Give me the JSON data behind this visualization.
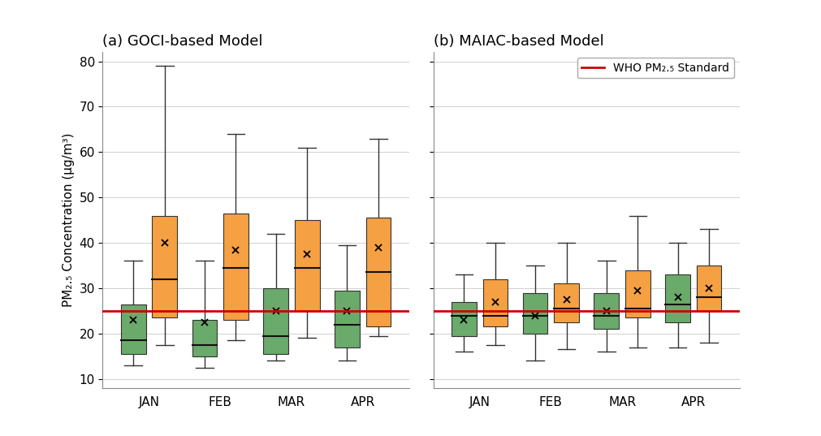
{
  "who_standard": 25,
  "ylim": [
    8,
    82
  ],
  "yticks": [
    10,
    20,
    30,
    40,
    50,
    60,
    70,
    80
  ],
  "months": [
    "JAN",
    "FEB",
    "MAR",
    "APR"
  ],
  "green_color": "#6aaa6a",
  "orange_color": "#f5a042",
  "red_color": "#cc0000",
  "panel_a_title": "(a) GOCI-based Model",
  "panel_b_title": "(b) MAIAC-based Model",
  "ylabel": "PM₂.₅ Concentration (μg/m³)",
  "legend_label": "WHO PM₂.₅ Standard",
  "goci_green": {
    "JAN": {
      "whislo": 13.0,
      "q1": 15.5,
      "med": 18.5,
      "q3": 26.5,
      "whishi": 36.0,
      "mean": 23.0
    },
    "FEB": {
      "whislo": 12.5,
      "q1": 15.0,
      "med": 17.5,
      "q3": 23.0,
      "whishi": 36.0,
      "mean": 22.5
    },
    "MAR": {
      "whislo": 14.0,
      "q1": 15.5,
      "med": 19.5,
      "q3": 30.0,
      "whishi": 42.0,
      "mean": 25.0
    },
    "APR": {
      "whislo": 14.0,
      "q1": 17.0,
      "med": 22.0,
      "q3": 29.5,
      "whishi": 39.5,
      "mean": 25.0
    }
  },
  "goci_orange": {
    "JAN": {
      "whislo": 17.5,
      "q1": 23.5,
      "med": 32.0,
      "q3": 46.0,
      "whishi": 79.0,
      "mean": 40.0
    },
    "FEB": {
      "whislo": 18.5,
      "q1": 23.0,
      "med": 34.5,
      "q3": 46.5,
      "whishi": 64.0,
      "mean": 38.5
    },
    "MAR": {
      "whislo": 19.0,
      "q1": 25.0,
      "med": 34.5,
      "q3": 45.0,
      "whishi": 61.0,
      "mean": 37.5
    },
    "APR": {
      "whislo": 19.5,
      "q1": 21.5,
      "med": 33.5,
      "q3": 45.5,
      "whishi": 63.0,
      "mean": 39.0
    }
  },
  "maiac_green": {
    "JAN": {
      "whislo": 16.0,
      "q1": 19.5,
      "med": 24.0,
      "q3": 27.0,
      "whishi": 33.0,
      "mean": 23.0
    },
    "FEB": {
      "whislo": 14.0,
      "q1": 20.0,
      "med": 24.0,
      "q3": 29.0,
      "whishi": 35.0,
      "mean": 24.0
    },
    "MAR": {
      "whislo": 16.0,
      "q1": 21.0,
      "med": 24.0,
      "q3": 29.0,
      "whishi": 36.0,
      "mean": 25.0
    },
    "APR": {
      "whislo": 17.0,
      "q1": 22.5,
      "med": 26.5,
      "q3": 33.0,
      "whishi": 40.0,
      "mean": 28.0
    }
  },
  "maiac_orange": {
    "JAN": {
      "whislo": 17.5,
      "q1": 21.5,
      "med": 24.0,
      "q3": 32.0,
      "whishi": 40.0,
      "mean": 27.0
    },
    "FEB": {
      "whislo": 16.5,
      "q1": 22.5,
      "med": 25.5,
      "q3": 31.0,
      "whishi": 40.0,
      "mean": 27.5
    },
    "MAR": {
      "whislo": 17.0,
      "q1": 23.5,
      "med": 25.5,
      "q3": 34.0,
      "whishi": 46.0,
      "mean": 29.5
    },
    "APR": {
      "whislo": 18.0,
      "q1": 25.0,
      "med": 28.0,
      "q3": 35.0,
      "whishi": 43.0,
      "mean": 30.0
    }
  }
}
